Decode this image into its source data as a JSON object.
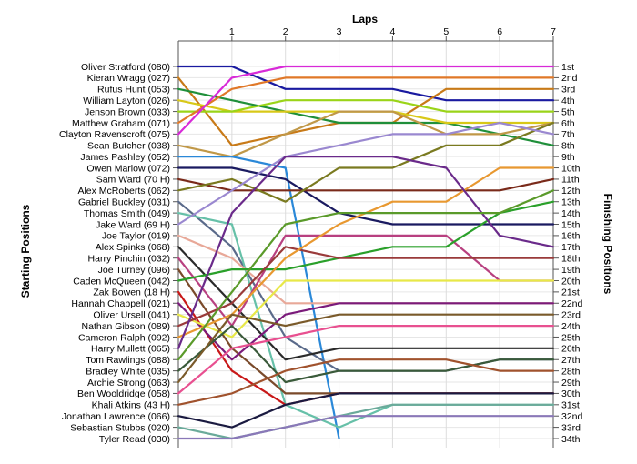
{
  "chart_data": {
    "type": "line",
    "title": "",
    "xlabel": "Laps",
    "ylabel_left": "Starting Positions",
    "ylabel_right": "Finishing Positions",
    "x": [
      0,
      1,
      2,
      3,
      4,
      5,
      6,
      7
    ],
    "x_tick_labels": [
      "1",
      "2",
      "3",
      "4",
      "5",
      "6",
      "7"
    ],
    "ylim": [
      1,
      34
    ],
    "invert_y": true,
    "grid": true,
    "legend": "none",
    "starting_positions": [
      "Oliver Stratford (080)",
      "Kieran Wragg (027)",
      "Rufus Hunt (053)",
      "William Layton (026)",
      "Jenson Brown (033)",
      "Matthew Graham (071)",
      "Clayton Ravenscroft (075)",
      "Sean Butcher (038)",
      "James Pashley (052)",
      "Owen Marlow (072)",
      "Sam Ward (70 H)",
      "Alex McRoberts (062)",
      "Gabriel Buckley (031)",
      "Thomas Smith (049)",
      "Jake Ward (69 H)",
      "Joe Taylor (019)",
      "Alex Spinks (068)",
      "Harry Pinchin (032)",
      "Joe Turney (096)",
      "Caden McQueen (042)",
      "Zak Bowen (18 H)",
      "Hannah Chappell (021)",
      "Oliver Ursell (041)",
      "Nathan Gibson (089)",
      "Cameron Ralph (092)",
      "Harry Mullett (065)",
      "Tom Rawlings (088)",
      "Bradley White (035)",
      "Archie Strong (063)",
      "Ben Wooldridge (058)",
      "Khali Atkins (43 H)",
      "Jonathan Lawrence (066)",
      "Sebastian Stubbs (020)",
      "Tyler Read (030)"
    ],
    "finishing_positions": [
      "1st",
      "2nd",
      "3rd",
      "4th",
      "5th",
      "6th",
      "7th",
      "8th",
      "9th",
      "10th",
      "11th",
      "12th",
      "13th",
      "14th",
      "15th",
      "16th",
      "17th",
      "18th",
      "19th",
      "20th",
      "21st",
      "22nd",
      "23rd",
      "24th",
      "25th",
      "26th",
      "27th",
      "28th",
      "29th",
      "30th",
      "31st",
      "32nd",
      "33rd",
      "34th"
    ],
    "series": [
      {
        "color": "#1a1aa0",
        "values": [
          1,
          1,
          3,
          3,
          3,
          4,
          4,
          4
        ]
      },
      {
        "color": "#c87a18",
        "values": [
          2,
          8,
          7,
          6,
          6,
          3,
          3,
          3
        ]
      },
      {
        "color": "#1f8f3a",
        "values": [
          3,
          4,
          5,
          6,
          6,
          6,
          7,
          8
        ]
      },
      {
        "color": "#d8c818",
        "values": [
          4,
          5,
          5,
          5,
          5,
          6,
          6,
          6
        ]
      },
      {
        "color": "#9ad418",
        "values": [
          5,
          5,
          4,
          4,
          4,
          5,
          5,
          5
        ]
      },
      {
        "color": "#e07828",
        "values": [
          6,
          3,
          2,
          2,
          2,
          2,
          2,
          2
        ]
      },
      {
        "color": "#d82ad8",
        "values": [
          7,
          2,
          1,
          1,
          1,
          1,
          1,
          1
        ]
      },
      {
        "color": "#c09848",
        "values": [
          8,
          9,
          7,
          5,
          5,
          7,
          7,
          6
        ]
      },
      {
        "color": "#2a88d8",
        "values": [
          9,
          9,
          10,
          34,
          null,
          null,
          null,
          null
        ]
      },
      {
        "color": "#1a1a60",
        "values": [
          10,
          10,
          11,
          14,
          15,
          15,
          15,
          15
        ]
      },
      {
        "color": "#7a2a1a",
        "values": [
          11,
          12,
          12,
          12,
          12,
          12,
          12,
          11
        ]
      },
      {
        "color": "#7a7a20",
        "values": [
          12,
          11,
          13,
          10,
          10,
          8,
          8,
          6
        ]
      },
      {
        "color": "#5a6a8a",
        "values": [
          13,
          17,
          25,
          28,
          28,
          28,
          27,
          27
        ]
      },
      {
        "color": "#66c0a8",
        "values": [
          14,
          15,
          31,
          33,
          31,
          31,
          31,
          31
        ]
      },
      {
        "color": "#9a88d0",
        "values": [
          15,
          12,
          9,
          8,
          7,
          7,
          6,
          7
        ]
      },
      {
        "color": "#e8a898",
        "values": [
          16,
          18,
          22,
          22,
          22,
          22,
          22,
          22
        ]
      },
      {
        "color": "#2a2a2a",
        "values": [
          17,
          22,
          27,
          26,
          26,
          26,
          26,
          26
        ]
      },
      {
        "color": "#b84080",
        "values": [
          18,
          24,
          16,
          16,
          16,
          16,
          20,
          20
        ]
      },
      {
        "color": "#7a4a2a",
        "values": [
          19,
          26,
          30,
          30,
          30,
          30,
          30,
          30
        ]
      },
      {
        "color": "#2aa02a",
        "values": [
          20,
          19,
          19,
          18,
          17,
          17,
          14,
          13
        ]
      },
      {
        "color": "#c81818",
        "values": [
          21,
          28,
          31,
          30,
          30,
          30,
          30,
          30
        ]
      },
      {
        "color": "#7a1a7a",
        "values": [
          22,
          27,
          23,
          22,
          22,
          22,
          22,
          22
        ]
      },
      {
        "color": "#e8e848",
        "values": [
          23,
          25,
          20,
          20,
          20,
          20,
          20,
          20
        ]
      },
      {
        "color": "#9a3a3a",
        "values": [
          24,
          22,
          17,
          18,
          18,
          18,
          18,
          18
        ]
      },
      {
        "color": "#e89830",
        "values": [
          25,
          23,
          18,
          15,
          13,
          13,
          10,
          10
        ]
      },
      {
        "color": "#6a2a8a",
        "values": [
          26,
          14,
          9,
          9,
          9,
          10,
          16,
          17
        ]
      },
      {
        "color": "#5a9a2a",
        "values": [
          27,
          21,
          15,
          14,
          14,
          14,
          14,
          12
        ]
      },
      {
        "color": "#3a5a3a",
        "values": [
          28,
          24,
          29,
          28,
          28,
          28,
          27,
          27
        ]
      },
      {
        "color": "#7a5a2a",
        "values": [
          29,
          23,
          24,
          23,
          23,
          23,
          23,
          23
        ]
      },
      {
        "color": "#e85090",
        "values": [
          30,
          26,
          25,
          24,
          24,
          24,
          24,
          24
        ]
      },
      {
        "color": "#a0522d",
        "values": [
          31,
          30,
          28,
          27,
          27,
          27,
          28,
          28
        ]
      },
      {
        "color": "#1a1a40",
        "values": [
          32,
          33,
          31,
          30,
          30,
          30,
          30,
          30
        ]
      },
      {
        "color": "#6aaa9a",
        "values": [
          33,
          34,
          33,
          32,
          31,
          31,
          31,
          31
        ]
      },
      {
        "color": "#8a78b8",
        "values": [
          34,
          34,
          33,
          32,
          32,
          32,
          32,
          32
        ]
      }
    ]
  }
}
